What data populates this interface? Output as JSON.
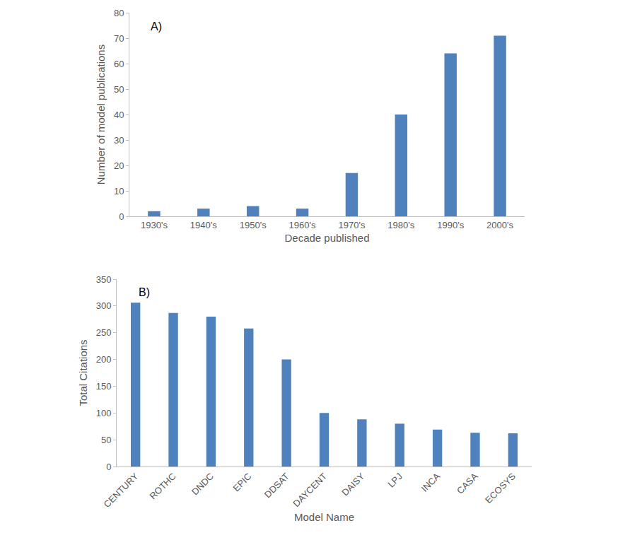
{
  "chart_data": [
    {
      "type": "bar",
      "annotations": [
        {
          "text": "A)"
        }
      ],
      "x_label": "Decade published",
      "y_label": "Number of model publications",
      "categories": [
        "1930's",
        "1940's",
        "1950's",
        "1960's",
        "1970's",
        "1980's",
        "1990's",
        "2000's"
      ],
      "values": [
        2,
        3,
        4,
        3,
        17,
        40,
        64,
        71
      ],
      "color": "#4f81bd",
      "ylim": [
        0,
        80
      ],
      "yticks": [
        0,
        10,
        20,
        30,
        40,
        50,
        60,
        70,
        80
      ],
      "grid": false
    },
    {
      "type": "bar",
      "annotations": [
        {
          "text": "B)"
        }
      ],
      "x_label": "Model Name",
      "y_label": "Total Citations",
      "categories": [
        "CENTURY",
        "ROTHC",
        "DNDC",
        "EPIC",
        "DDSAT",
        "DAYCENT",
        "DAISY",
        "LPJ",
        "INCA",
        "CASA",
        "ECOSYS"
      ],
      "values": [
        306,
        287,
        280,
        258,
        200,
        100,
        88,
        80,
        69,
        63,
        62
      ],
      "color": "#4f81bd",
      "ylim": [
        0,
        350
      ],
      "yticks": [
        0,
        50,
        100,
        150,
        200,
        250,
        300,
        350
      ],
      "grid": false
    }
  ]
}
